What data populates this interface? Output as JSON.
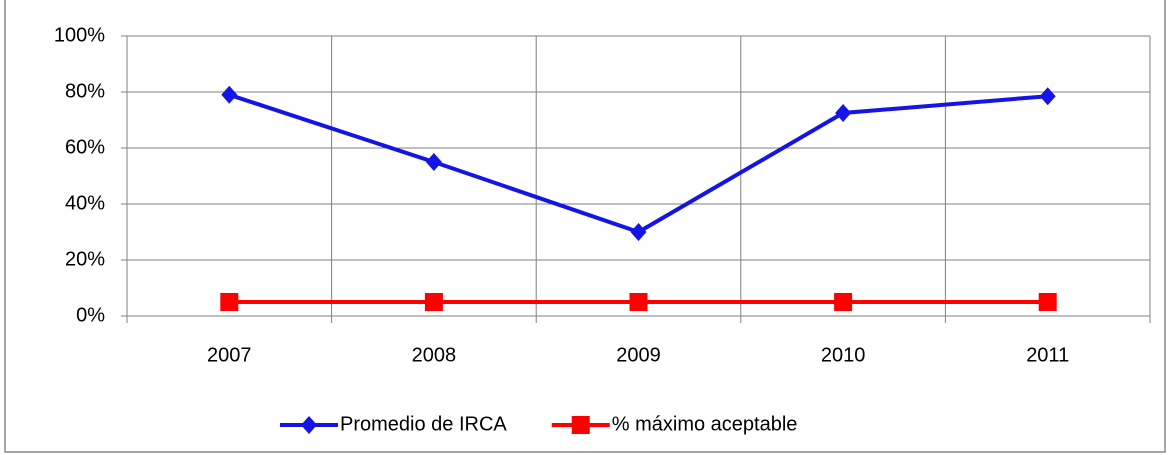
{
  "chart_data": {
    "type": "line",
    "categories": [
      "2007",
      "2008",
      "2009",
      "2010",
      "2011"
    ],
    "series": [
      {
        "name": "Promedio de IRCA",
        "color": "#1414e6",
        "marker": "diamond",
        "values": [
          79,
          55,
          30,
          72.5,
          78.5
        ]
      },
      {
        "name": "% máximo aceptable",
        "color": "#ff0000",
        "marker": "square",
        "values": [
          5,
          5,
          5,
          5,
          5
        ]
      }
    ],
    "ylim": [
      0,
      100
    ],
    "yticks": [
      {
        "value": 0,
        "label": "0%"
      },
      {
        "value": 20,
        "label": "20%"
      },
      {
        "value": 40,
        "label": "40%"
      },
      {
        "value": 60,
        "label": "60%"
      },
      {
        "value": 80,
        "label": "80%"
      },
      {
        "value": 100,
        "label": "100%"
      }
    ],
    "grid": true,
    "legend": "bottom"
  }
}
